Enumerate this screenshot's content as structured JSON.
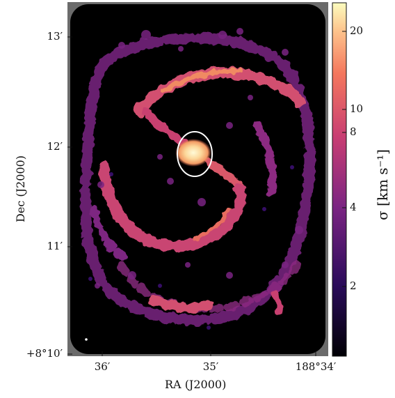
{
  "figure": {
    "xlabel": "RA (J2000)",
    "ylabel": "Dec (J2000)",
    "x_ticks": [
      "36′",
      "35′",
      "188°34′"
    ],
    "y_ticks": [
      "13′",
      "12′",
      "11′",
      "+8°10′"
    ],
    "colorbar": {
      "label": "σ [km s⁻¹]",
      "ticks": [
        "20",
        "10",
        "8",
        "4",
        "2"
      ],
      "scale": "log",
      "colormap": [
        "#000004",
        "#3b0f70",
        "#8c2981",
        "#de4968",
        "#fe9f6d",
        "#fcfdbf"
      ]
    },
    "colors": {
      "background": "#000000",
      "frame": "#6b6b6b",
      "ellipse": "#ffffff"
    }
  }
}
